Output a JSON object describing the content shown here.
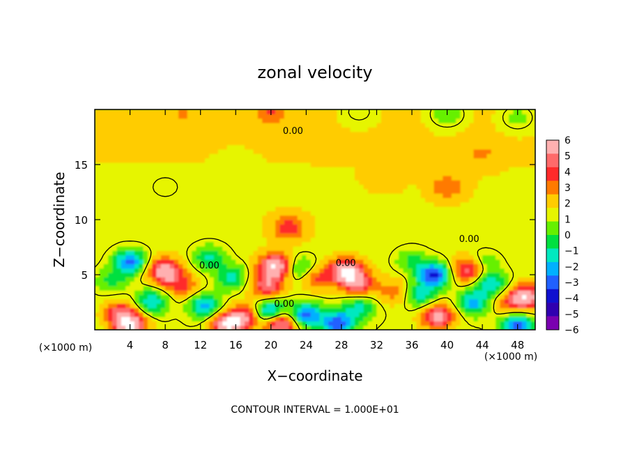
{
  "chart_data": {
    "type": "heatmap",
    "title": "zonal velocity",
    "xlabel": "X−coordinate",
    "ylabel": "Z−coordinate",
    "x_unit_left": "(×1000 m)",
    "x_unit_right": "(×1000 m)",
    "footer": "CONTOUR INTERVAL = 1.000E+01",
    "xlim": [
      0,
      50
    ],
    "ylim": [
      0,
      20
    ],
    "x_ticks": [
      4,
      8,
      12,
      16,
      20,
      24,
      28,
      32,
      36,
      40,
      44,
      48
    ],
    "y_ticks": [
      5,
      10,
      15
    ],
    "contour_labels": [
      {
        "text": "0.00",
        "x": 22.5,
        "y": 18.1
      },
      {
        "text": "0.00",
        "x": 42.5,
        "y": 8.3
      },
      {
        "text": "0.00",
        "x": 13.0,
        "y": 5.9
      },
      {
        "text": "0.00",
        "x": 28.5,
        "y": 6.1
      },
      {
        "text": "0.00",
        "x": 21.5,
        "y": 2.4
      }
    ],
    "colorbar": {
      "ticks": [
        6,
        5,
        4,
        3,
        2,
        1,
        0,
        "−1",
        "−2",
        "−3",
        "−4",
        "−5",
        "−6"
      ],
      "colors": [
        "#ffb0b0",
        "#ff6a6a",
        "#ff2a2a",
        "#ff7a00",
        "#ffcc00",
        "#e6f500",
        "#66f000",
        "#00e040",
        "#00e8c0",
        "#00b0ff",
        "#2060ff",
        "#1010d0",
        "#3000b0",
        "#7a00b0"
      ]
    },
    "blobs": [
      {
        "x": 4,
        "y": 6.2,
        "v": -5
      },
      {
        "x": 2,
        "y": 4.5,
        "v": -2
      },
      {
        "x": 8,
        "y": 5.3,
        "v": 5.8
      },
      {
        "x": 10,
        "y": 4,
        "v": 2.5
      },
      {
        "x": 6.5,
        "y": 2.6,
        "v": -3.5
      },
      {
        "x": 12.5,
        "y": 2.2,
        "v": -4
      },
      {
        "x": 13,
        "y": 6.6,
        "v": -3
      },
      {
        "x": 15.5,
        "y": 4.8,
        "v": -3
      },
      {
        "x": 4,
        "y": 0.3,
        "v": 6
      },
      {
        "x": 3,
        "y": 1.5,
        "v": 4
      },
      {
        "x": 15,
        "y": 0.5,
        "v": 6
      },
      {
        "x": 17,
        "y": 1.2,
        "v": 4
      },
      {
        "x": 20.5,
        "y": 5.8,
        "v": 6
      },
      {
        "x": 19.5,
        "y": 4,
        "v": 4
      },
      {
        "x": 23.5,
        "y": 5.5,
        "v": -3
      },
      {
        "x": 25,
        "y": 4.8,
        "v": 3
      },
      {
        "x": 28.5,
        "y": 5.3,
        "v": 6
      },
      {
        "x": 30,
        "y": 4.2,
        "v": 4
      },
      {
        "x": 21,
        "y": 0.6,
        "v": 6
      },
      {
        "x": 20,
        "y": 1.6,
        "v": -5
      },
      {
        "x": 24,
        "y": 1.4,
        "v": -5
      },
      {
        "x": 27.5,
        "y": 0.6,
        "v": -5.5
      },
      {
        "x": 30,
        "y": 2,
        "v": -3
      },
      {
        "x": 34,
        "y": 3.5,
        "v": 2
      },
      {
        "x": 22,
        "y": 9.3,
        "v": 3
      },
      {
        "x": 38.5,
        "y": 5,
        "v": -6
      },
      {
        "x": 37,
        "y": 3.2,
        "v": -3
      },
      {
        "x": 39,
        "y": 1.2,
        "v": 5
      },
      {
        "x": 42.5,
        "y": 5.5,
        "v": 4.5
      },
      {
        "x": 45,
        "y": 4.2,
        "v": -3.5
      },
      {
        "x": 43,
        "y": 2.5,
        "v": -4
      },
      {
        "x": 47,
        "y": 2.5,
        "v": 2
      },
      {
        "x": 49,
        "y": 3,
        "v": 5.5
      },
      {
        "x": 48,
        "y": 0.4,
        "v": -5
      },
      {
        "x": 44,
        "y": 6,
        "v": -2
      },
      {
        "x": 36,
        "y": 6.3,
        "v": -2
      },
      {
        "x": 40,
        "y": 13,
        "v": 2
      },
      {
        "x": 44,
        "y": 16,
        "v": 1.2
      },
      {
        "x": 33,
        "y": 14,
        "v": 1
      },
      {
        "x": 20,
        "y": 19.8,
        "v": 2
      },
      {
        "x": 10,
        "y": 19.6,
        "v": 1
      },
      {
        "x": 40,
        "y": 19.6,
        "v": -2
      },
      {
        "x": 48,
        "y": 19.3,
        "v": -1.5
      },
      {
        "x": 30,
        "y": 19.8,
        "v": -1
      },
      {
        "x": 8,
        "y": 13,
        "v": -0.8
      },
      {
        "x": 16,
        "y": 15,
        "v": -0.5
      }
    ]
  }
}
